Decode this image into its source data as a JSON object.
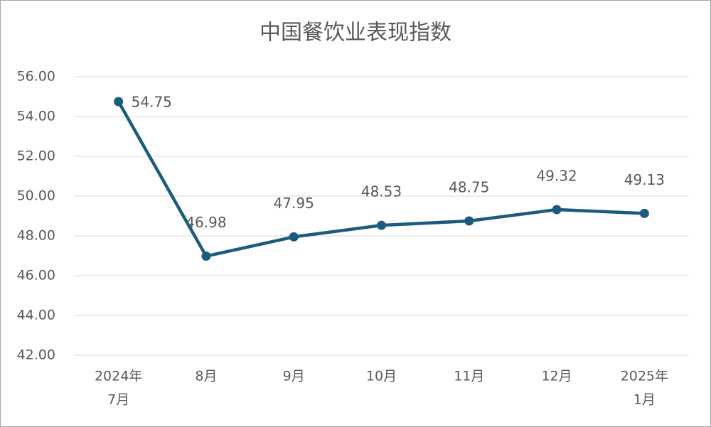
{
  "chart_data": {
    "type": "line",
    "title": "中国餐饮业表现指数",
    "categories": [
      [
        "2024年",
        "7月"
      ],
      [
        "8月"
      ],
      [
        "9月"
      ],
      [
        "10月"
      ],
      [
        "11月"
      ],
      [
        "12月"
      ],
      [
        "2025年",
        "1月"
      ]
    ],
    "series": [
      {
        "color": "#1b5c7e",
        "values": [
          54.75,
          46.98,
          47.95,
          48.53,
          48.75,
          49.32,
          49.13
        ]
      }
    ],
    "ylim": [
      42,
      56
    ],
    "yticks": [
      {
        "value": 42,
        "label": "42.00"
      },
      {
        "value": 44,
        "label": "44.00"
      },
      {
        "value": 46,
        "label": "46.00"
      },
      {
        "value": 48,
        "label": "48.00"
      },
      {
        "value": 50,
        "label": "50.00"
      },
      {
        "value": 52,
        "label": "52.00"
      },
      {
        "value": 54,
        "label": "54.00"
      },
      {
        "value": 56,
        "label": "56.00"
      }
    ],
    "grid": true
  }
}
